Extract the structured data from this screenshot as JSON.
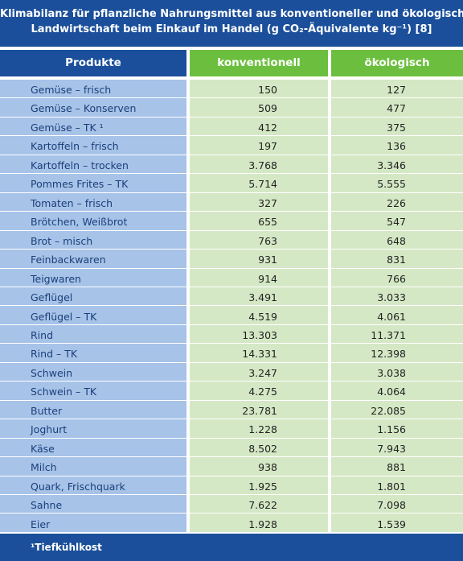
{
  "header": {
    "title_lines": [
      "Klimabilanz für pflanzliche Nahrungsmittel aus konventioneller und ökologischer",
      "Landwirtschaft beim Einkauf im Handel (g CO₂-Äquivalente kg⁻¹) [8]"
    ]
  },
  "table": {
    "columns": [
      "Produkte",
      "konventionell",
      "ökologisch"
    ],
    "rows": [
      [
        "Gemüse – frisch",
        "150",
        "127"
      ],
      [
        "Gemüse – Konserven",
        "509",
        "477"
      ],
      [
        "Gemüse – TK ¹",
        "412",
        "375"
      ],
      [
        "Kartoffeln – frisch",
        "197",
        "136"
      ],
      [
        "Kartoffeln – trocken",
        "3.768",
        "3.346"
      ],
      [
        "Pommes Frites – TK",
        "5.714",
        "5.555"
      ],
      [
        "Tomaten – frisch",
        "327",
        "226"
      ],
      [
        "Brötchen, Weißbrot",
        "655",
        "547"
      ],
      [
        "Brot – misch",
        "763",
        "648"
      ],
      [
        "Feinbackwaren",
        "931",
        "831"
      ],
      [
        "Teigwaren",
        "914",
        "766"
      ],
      [
        "Geflügel",
        "3.491",
        "3.033"
      ],
      [
        "Geflügel – TK",
        "4.519",
        "4.061"
      ],
      [
        "Rind",
        "13.303",
        "11.371"
      ],
      [
        "Rind – TK",
        "14.331",
        "12.398"
      ],
      [
        "Schwein",
        "3.247",
        "3.038"
      ],
      [
        "Schwein – TK",
        "4.275",
        "4.064"
      ],
      [
        "Butter",
        "23.781",
        "22.085"
      ],
      [
        "Joghurt",
        "1.228",
        "1.156"
      ],
      [
        "Käse",
        "8.502",
        "7.943"
      ],
      [
        "Milch",
        "938",
        "881"
      ],
      [
        "Quark, Frischquark",
        "1.925",
        "1.801"
      ],
      [
        "Sahne",
        "7.622",
        "7.098"
      ],
      [
        "Eier",
        "1.928",
        "1.539"
      ]
    ]
  },
  "footer": {
    "note": "¹Tiefkühlkost"
  }
}
